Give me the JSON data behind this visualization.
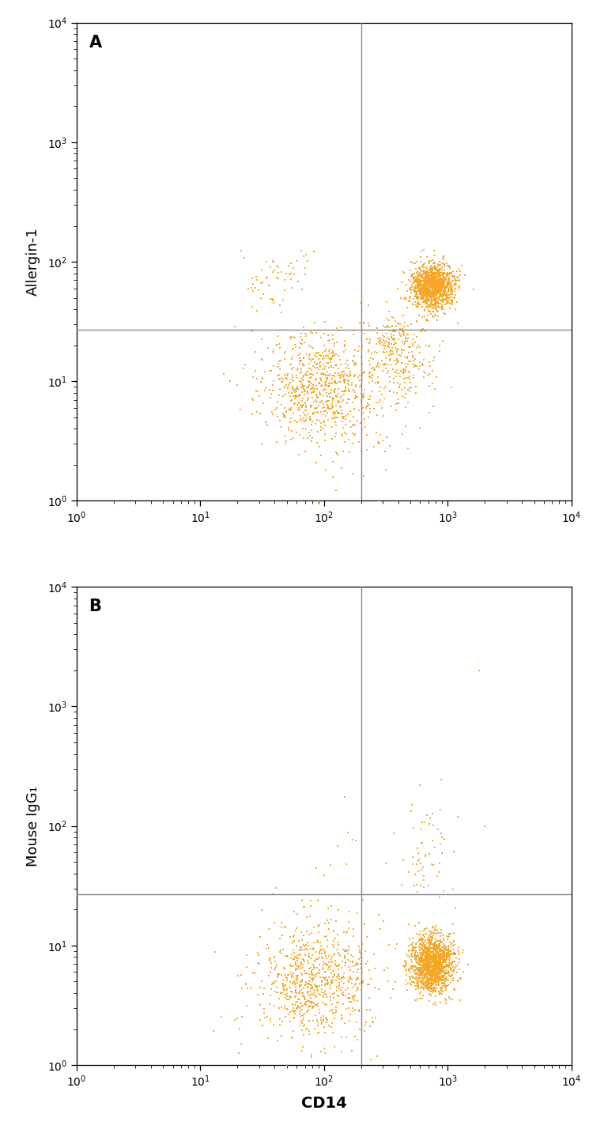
{
  "dot_color": "#F5A623",
  "dot_size": 4.0,
  "dot_alpha": 0.9,
  "background_color": "#ffffff",
  "panel_A_label": "A",
  "panel_B_label": "B",
  "ylabel_A": "Allergin-1",
  "ylabel_B": "Mouse IgG₁",
  "xlabel": "CD14",
  "xline": 200,
  "yline_A": 27,
  "yline_B": 27,
  "xlim": [
    1,
    10000
  ],
  "ylim": [
    1,
    10000
  ],
  "line_color": "#888888",
  "line_width": 1.0
}
